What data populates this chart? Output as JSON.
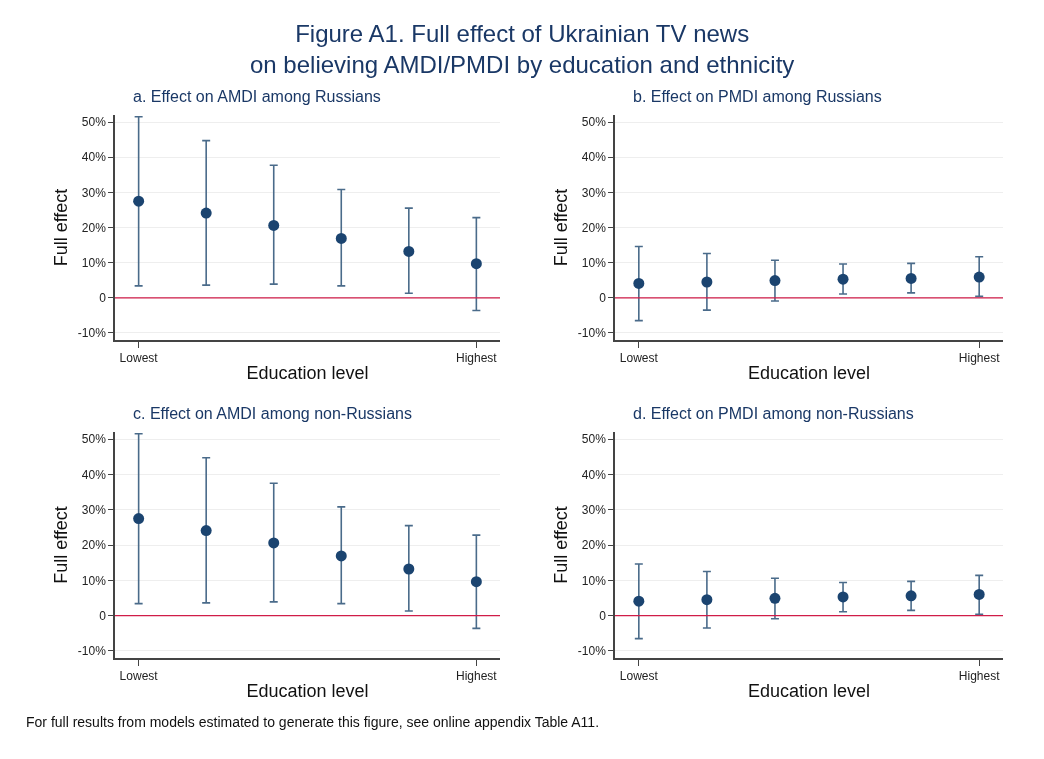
{
  "chart_data": [
    {
      "type": "other",
      "title": "Figure A1. Full effect of Ukrainian TV news\non believing AMDI/PMDI by education and ethnicity",
      "annotations": [
        "For full results from models estimated to generate this figure, see online appendix Table A11."
      ]
    },
    {
      "type": "scatter",
      "title": "a. Effect on AMDI among Russians",
      "xlabel": "Education level",
      "ylabel": "Full effect",
      "categories": [
        "Lowest",
        null,
        null,
        null,
        null,
        "Highest"
      ],
      "values": [
        27.5,
        24.1,
        20.6,
        16.9,
        13.2,
        9.7
      ],
      "errors": [
        [
          3.4,
          51.5
        ],
        [
          3.6,
          44.7
        ],
        [
          3.9,
          37.7
        ],
        [
          3.4,
          30.8
        ],
        [
          1.3,
          25.5
        ],
        [
          -3.6,
          22.8
        ]
      ],
      "color": "#1b4470",
      "marker": "circle",
      "ylim": [
        -12,
        52
      ],
      "yticks": [
        {
          "value": -10,
          "label": "-10%"
        },
        0,
        {
          "value": 10,
          "label": "10%"
        },
        {
          "value": 20,
          "label": "20%"
        },
        {
          "value": 30,
          "label": "30%"
        },
        {
          "value": 40,
          "label": "40%"
        },
        {
          "value": 50,
          "label": "50%"
        }
      ],
      "grid": "y",
      "ref_lines": [
        {
          "axis": "y",
          "value": 0,
          "color": "#d01c48"
        }
      ]
    },
    {
      "type": "scatter",
      "title": "b. Effect on PMDI among Russians",
      "xlabel": "Education level",
      "ylabel": "Full effect",
      "categories": [
        "Lowest",
        null,
        null,
        null,
        null,
        "Highest"
      ],
      "values": [
        4.1,
        4.5,
        4.9,
        5.3,
        5.5,
        5.9
      ],
      "errors": [
        [
          -6.5,
          14.6
        ],
        [
          -3.5,
          12.6
        ],
        [
          -0.9,
          10.7
        ],
        [
          1.1,
          9.6
        ],
        [
          1.4,
          9.8
        ],
        [
          0.4,
          11.7
        ]
      ],
      "color": "#1b4470",
      "marker": "circle",
      "ylim": [
        -12,
        52
      ],
      "yticks": [
        {
          "value": -10,
          "label": "-10%"
        },
        0,
        {
          "value": 10,
          "label": "10%"
        },
        {
          "value": 20,
          "label": "20%"
        },
        {
          "value": 30,
          "label": "30%"
        },
        {
          "value": 40,
          "label": "40%"
        },
        {
          "value": 50,
          "label": "50%"
        }
      ],
      "grid": "y",
      "ref_lines": [
        {
          "axis": "y",
          "value": 0,
          "color": "#d01c48"
        }
      ]
    },
    {
      "type": "scatter",
      "title": "c. Effect on AMDI among non-Russians",
      "xlabel": "Education level",
      "ylabel": "Full effect",
      "categories": [
        "Lowest",
        null,
        null,
        null,
        null,
        "Highest"
      ],
      "values": [
        27.5,
        24.1,
        20.6,
        16.9,
        13.2,
        9.6
      ],
      "errors": [
        [
          3.4,
          51.5
        ],
        [
          3.6,
          44.7
        ],
        [
          3.9,
          37.5
        ],
        [
          3.4,
          30.8
        ],
        [
          1.3,
          25.5
        ],
        [
          -3.6,
          22.8
        ]
      ],
      "color": "#1b4470",
      "marker": "circle",
      "ylim": [
        -12,
        52
      ],
      "yticks": [
        {
          "value": -10,
          "label": "-10%"
        },
        0,
        {
          "value": 10,
          "label": "10%"
        },
        {
          "value": 20,
          "label": "20%"
        },
        {
          "value": 30,
          "label": "30%"
        },
        {
          "value": 40,
          "label": "40%"
        },
        {
          "value": 50,
          "label": "50%"
        }
      ],
      "grid": "y",
      "ref_lines": [
        {
          "axis": "y",
          "value": 0,
          "color": "#d01c48"
        }
      ]
    },
    {
      "type": "scatter",
      "title": "d. Effect on PMDI among non-Russians",
      "xlabel": "Education level",
      "ylabel": "Full effect",
      "categories": [
        "Lowest",
        null,
        null,
        null,
        null,
        "Highest"
      ],
      "values": [
        4.1,
        4.5,
        4.9,
        5.3,
        5.6,
        6.0
      ],
      "errors": [
        [
          -6.5,
          14.6
        ],
        [
          -3.5,
          12.5
        ],
        [
          -0.9,
          10.6
        ],
        [
          1.1,
          9.4
        ],
        [
          1.5,
          9.7
        ],
        [
          0.4,
          11.4
        ]
      ],
      "color": "#1b4470",
      "marker": "circle",
      "ylim": [
        -12,
        52
      ],
      "yticks": [
        {
          "value": -10,
          "label": "-10%"
        },
        0,
        {
          "value": 10,
          "label": "10%"
        },
        {
          "value": 20,
          "label": "20%"
        },
        {
          "value": 30,
          "label": "30%"
        },
        {
          "value": 40,
          "label": "40%"
        },
        {
          "value": 50,
          "label": "50%"
        }
      ],
      "grid": "y",
      "ref_lines": [
        {
          "axis": "y",
          "value": 0,
          "color": "#d01c48"
        }
      ]
    }
  ]
}
